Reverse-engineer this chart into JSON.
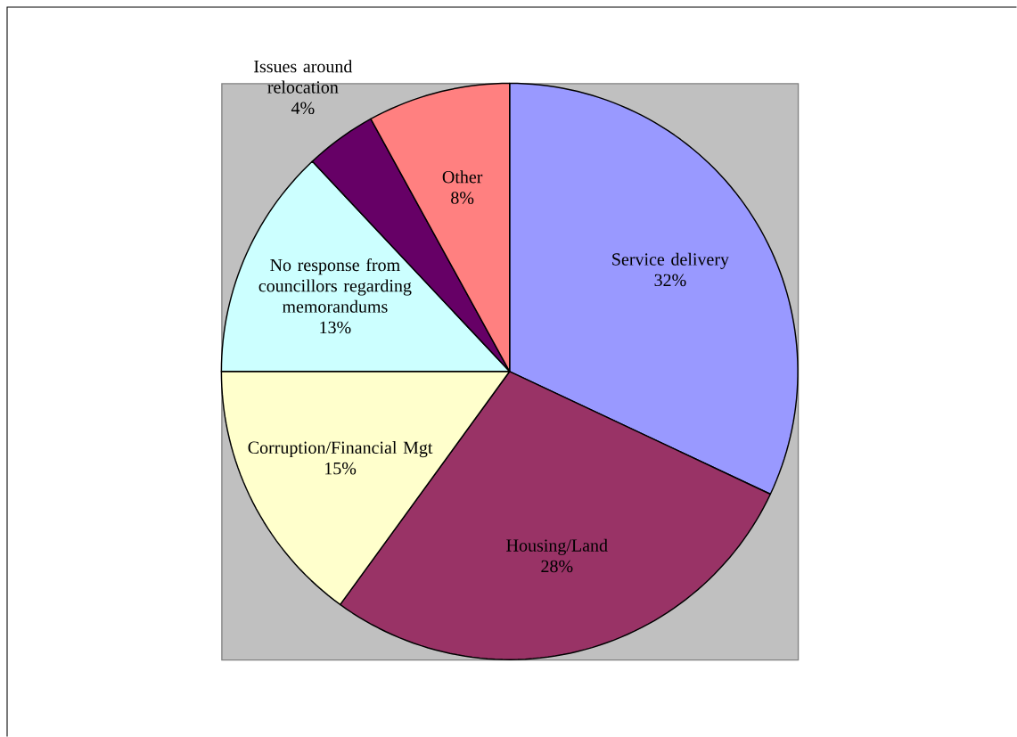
{
  "chart_data": {
    "type": "pie",
    "categories": [
      "Service delivery",
      "Housing/Land",
      "Corruption/Financial Mgt",
      "No response from councillors regarding memorandums",
      "Issues around relocation",
      "Other"
    ],
    "values": [
      32,
      28,
      15,
      13,
      4,
      8
    ],
    "value_labels": [
      "32%",
      "28%",
      "15%",
      "13%",
      "4%",
      "8%"
    ],
    "colors": [
      "#9999ff",
      "#993366",
      "#ffffcc",
      "#ccffff",
      "#660066",
      "#ff8080"
    ]
  }
}
